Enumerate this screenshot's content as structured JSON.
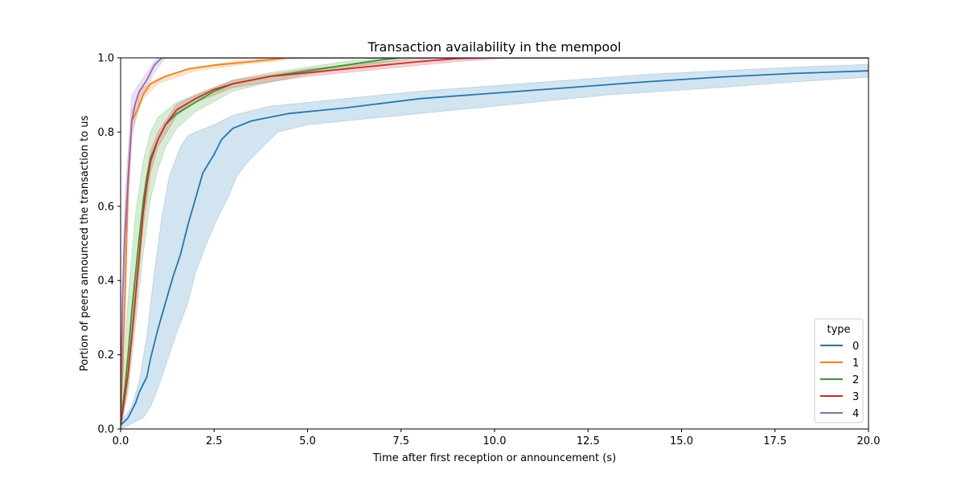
{
  "chart_data": {
    "type": "line",
    "title": "Transaction availability in the mempool",
    "xlabel": "Time after first reception or announcement (s)",
    "ylabel": "Portion of peers announced the transaction to us",
    "xlim": [
      0,
      20
    ],
    "ylim": [
      0,
      1
    ],
    "xticks": [
      "0.0",
      "2.5",
      "5.0",
      "7.5",
      "10.0",
      "12.5",
      "15.0",
      "17.5",
      "20.0"
    ],
    "yticks": [
      "0.0",
      "0.2",
      "0.4",
      "0.6",
      "0.8",
      "1.0"
    ],
    "grid": false,
    "legend": {
      "title": "type",
      "placement": "lower-right"
    },
    "series": [
      {
        "name": "0",
        "color": "#1f77b4",
        "points": [
          [
            0,
            0.01
          ],
          [
            0.2,
            0.03
          ],
          [
            0.4,
            0.07
          ],
          [
            0.5,
            0.1
          ],
          [
            0.7,
            0.14
          ],
          [
            0.8,
            0.19
          ],
          [
            1.0,
            0.27
          ],
          [
            1.2,
            0.34
          ],
          [
            1.4,
            0.41
          ],
          [
            1.6,
            0.47
          ],
          [
            1.8,
            0.55
          ],
          [
            2.0,
            0.62
          ],
          [
            2.2,
            0.69
          ],
          [
            2.5,
            0.74
          ],
          [
            2.7,
            0.78
          ],
          [
            3.0,
            0.81
          ],
          [
            3.5,
            0.83
          ],
          [
            4.5,
            0.85
          ],
          [
            6,
            0.865
          ],
          [
            8,
            0.89
          ],
          [
            10,
            0.905
          ],
          [
            12,
            0.92
          ],
          [
            14,
            0.935
          ],
          [
            16,
            0.948
          ],
          [
            18,
            0.958
          ],
          [
            20,
            0.965
          ]
        ],
        "band_lower": [
          [
            0,
            0.0
          ],
          [
            0.4,
            0.02
          ],
          [
            0.6,
            0.03
          ],
          [
            0.8,
            0.06
          ],
          [
            1.0,
            0.11
          ],
          [
            1.2,
            0.17
          ],
          [
            1.5,
            0.26
          ],
          [
            1.8,
            0.34
          ],
          [
            2.0,
            0.42
          ],
          [
            2.3,
            0.5
          ],
          [
            2.6,
            0.57
          ],
          [
            2.9,
            0.63
          ],
          [
            3.1,
            0.68
          ],
          [
            3.4,
            0.72
          ],
          [
            3.6,
            0.74
          ],
          [
            3.8,
            0.76
          ],
          [
            4.2,
            0.8
          ],
          [
            5,
            0.82
          ],
          [
            7,
            0.84
          ],
          [
            10,
            0.87
          ],
          [
            13,
            0.9
          ],
          [
            16,
            0.92
          ],
          [
            18,
            0.935
          ],
          [
            20,
            0.948
          ]
        ],
        "band_upper": [
          [
            0,
            0.02
          ],
          [
            0.3,
            0.06
          ],
          [
            0.5,
            0.13
          ],
          [
            0.7,
            0.25
          ],
          [
            0.9,
            0.42
          ],
          [
            1.1,
            0.57
          ],
          [
            1.3,
            0.68
          ],
          [
            1.6,
            0.76
          ],
          [
            1.8,
            0.79
          ],
          [
            2.0,
            0.8
          ],
          [
            2.5,
            0.82
          ],
          [
            3,
            0.845
          ],
          [
            4,
            0.87
          ],
          [
            6,
            0.89
          ],
          [
            8,
            0.91
          ],
          [
            10,
            0.925
          ],
          [
            12,
            0.94
          ],
          [
            14,
            0.955
          ],
          [
            16,
            0.965
          ],
          [
            18,
            0.975
          ],
          [
            20,
            0.982
          ]
        ]
      },
      {
        "name": "1",
        "color": "#ff7f0e",
        "points": [
          [
            0,
            0.01
          ],
          [
            0.1,
            0.3
          ],
          [
            0.2,
            0.65
          ],
          [
            0.3,
            0.83
          ],
          [
            0.45,
            0.86
          ],
          [
            0.6,
            0.9
          ],
          [
            0.8,
            0.93
          ],
          [
            1.2,
            0.95
          ],
          [
            1.8,
            0.97
          ],
          [
            2.5,
            0.98
          ],
          [
            3.5,
            0.99
          ],
          [
            4.5,
            1.0
          ],
          [
            20,
            1.0
          ]
        ],
        "band_lower": [
          [
            0,
            0.0
          ],
          [
            0.2,
            0.6
          ],
          [
            0.3,
            0.8
          ],
          [
            0.6,
            0.89
          ],
          [
            1.0,
            0.93
          ],
          [
            2.0,
            0.965
          ],
          [
            3.5,
            0.985
          ],
          [
            5.0,
            1.0
          ],
          [
            20,
            1.0
          ]
        ],
        "band_upper": [
          [
            0,
            0.02
          ],
          [
            0.2,
            0.7
          ],
          [
            0.3,
            0.86
          ],
          [
            0.6,
            0.92
          ],
          [
            1.0,
            0.945
          ],
          [
            2.0,
            0.975
          ],
          [
            3.0,
            0.99
          ],
          [
            4.0,
            1.0
          ],
          [
            20,
            1.0
          ]
        ]
      },
      {
        "name": "2",
        "color": "#2ca02c",
        "points": [
          [
            0,
            0.02
          ],
          [
            0.1,
            0.1
          ],
          [
            0.2,
            0.2
          ],
          [
            0.3,
            0.32
          ],
          [
            0.4,
            0.42
          ],
          [
            0.5,
            0.52
          ],
          [
            0.6,
            0.61
          ],
          [
            0.7,
            0.68
          ],
          [
            0.8,
            0.73
          ],
          [
            1.0,
            0.78
          ],
          [
            1.2,
            0.82
          ],
          [
            1.5,
            0.85
          ],
          [
            2.0,
            0.88
          ],
          [
            2.5,
            0.91
          ],
          [
            3.0,
            0.93
          ],
          [
            4.0,
            0.95
          ],
          [
            5.0,
            0.965
          ],
          [
            6.0,
            0.98
          ],
          [
            7.0,
            0.995
          ],
          [
            7.5,
            1.0
          ],
          [
            20,
            1.0
          ]
        ],
        "band_lower": [
          [
            0,
            0.0
          ],
          [
            0.2,
            0.1
          ],
          [
            0.4,
            0.28
          ],
          [
            0.6,
            0.47
          ],
          [
            0.8,
            0.62
          ],
          [
            1.0,
            0.7
          ],
          [
            1.2,
            0.76
          ],
          [
            1.5,
            0.81
          ],
          [
            2.0,
            0.855
          ],
          [
            3.0,
            0.91
          ],
          [
            4.0,
            0.935
          ],
          [
            5.0,
            0.955
          ],
          [
            6.5,
            0.98
          ],
          [
            8.0,
            1.0
          ],
          [
            20,
            1.0
          ]
        ],
        "band_upper": [
          [
            0,
            0.04
          ],
          [
            0.2,
            0.35
          ],
          [
            0.4,
            0.58
          ],
          [
            0.6,
            0.72
          ],
          [
            0.8,
            0.8
          ],
          [
            1.0,
            0.84
          ],
          [
            1.5,
            0.88
          ],
          [
            2.0,
            0.9
          ],
          [
            3.0,
            0.94
          ],
          [
            4.0,
            0.96
          ],
          [
            5.0,
            0.975
          ],
          [
            6.0,
            0.99
          ],
          [
            7.0,
            1.0
          ],
          [
            20,
            1.0
          ]
        ]
      },
      {
        "name": "3",
        "color": "#d62728",
        "points": [
          [
            0,
            0.01
          ],
          [
            0.1,
            0.08
          ],
          [
            0.2,
            0.15
          ],
          [
            0.3,
            0.25
          ],
          [
            0.4,
            0.36
          ],
          [
            0.5,
            0.47
          ],
          [
            0.6,
            0.58
          ],
          [
            0.7,
            0.66
          ],
          [
            0.8,
            0.72
          ],
          [
            1.0,
            0.78
          ],
          [
            1.2,
            0.82
          ],
          [
            1.5,
            0.86
          ],
          [
            2.0,
            0.89
          ],
          [
            2.5,
            0.915
          ],
          [
            3.0,
            0.93
          ],
          [
            4.0,
            0.95
          ],
          [
            5.0,
            0.96
          ],
          [
            6.0,
            0.97
          ],
          [
            7.0,
            0.98
          ],
          [
            8.0,
            0.99
          ],
          [
            9.0,
            0.998
          ],
          [
            10.0,
            1.0
          ],
          [
            20,
            1.0
          ]
        ],
        "band_lower": [
          [
            0,
            0.0
          ],
          [
            0.2,
            0.12
          ],
          [
            0.4,
            0.32
          ],
          [
            0.6,
            0.54
          ],
          [
            0.8,
            0.69
          ],
          [
            1.0,
            0.76
          ],
          [
            1.5,
            0.845
          ],
          [
            2.0,
            0.88
          ],
          [
            3.0,
            0.92
          ],
          [
            5.0,
            0.95
          ],
          [
            7.0,
            0.97
          ],
          [
            9.0,
            0.99
          ],
          [
            10.5,
            1.0
          ],
          [
            20,
            1.0
          ]
        ],
        "band_upper": [
          [
            0,
            0.03
          ],
          [
            0.2,
            0.18
          ],
          [
            0.4,
            0.4
          ],
          [
            0.6,
            0.62
          ],
          [
            0.8,
            0.75
          ],
          [
            1.0,
            0.8
          ],
          [
            1.5,
            0.875
          ],
          [
            2.0,
            0.9
          ],
          [
            3.0,
            0.94
          ],
          [
            5.0,
            0.97
          ],
          [
            7.0,
            0.99
          ],
          [
            8.5,
            1.0
          ],
          [
            20,
            1.0
          ]
        ]
      },
      {
        "name": "4",
        "color": "#9467bd",
        "points": [
          [
            0,
            0.02
          ],
          [
            0.05,
            0.35
          ],
          [
            0.1,
            0.5
          ],
          [
            0.2,
            0.68
          ],
          [
            0.3,
            0.83
          ],
          [
            0.4,
            0.88
          ],
          [
            0.5,
            0.91
          ],
          [
            0.7,
            0.94
          ],
          [
            0.9,
            0.98
          ],
          [
            1.1,
            1.0
          ],
          [
            20,
            1.0
          ]
        ],
        "band_lower": [
          [
            0,
            0.0
          ],
          [
            0.1,
            0.4
          ],
          [
            0.2,
            0.62
          ],
          [
            0.3,
            0.78
          ],
          [
            0.5,
            0.89
          ],
          [
            0.7,
            0.92
          ],
          [
            0.9,
            0.96
          ],
          [
            1.2,
            1.0
          ],
          [
            20,
            1.0
          ]
        ],
        "band_upper": [
          [
            0,
            0.05
          ],
          [
            0.1,
            0.6
          ],
          [
            0.2,
            0.75
          ],
          [
            0.3,
            0.9
          ],
          [
            0.5,
            0.93
          ],
          [
            0.7,
            0.96
          ],
          [
            0.9,
            0.99
          ],
          [
            1.0,
            1.0
          ],
          [
            20,
            1.0
          ]
        ]
      }
    ]
  }
}
